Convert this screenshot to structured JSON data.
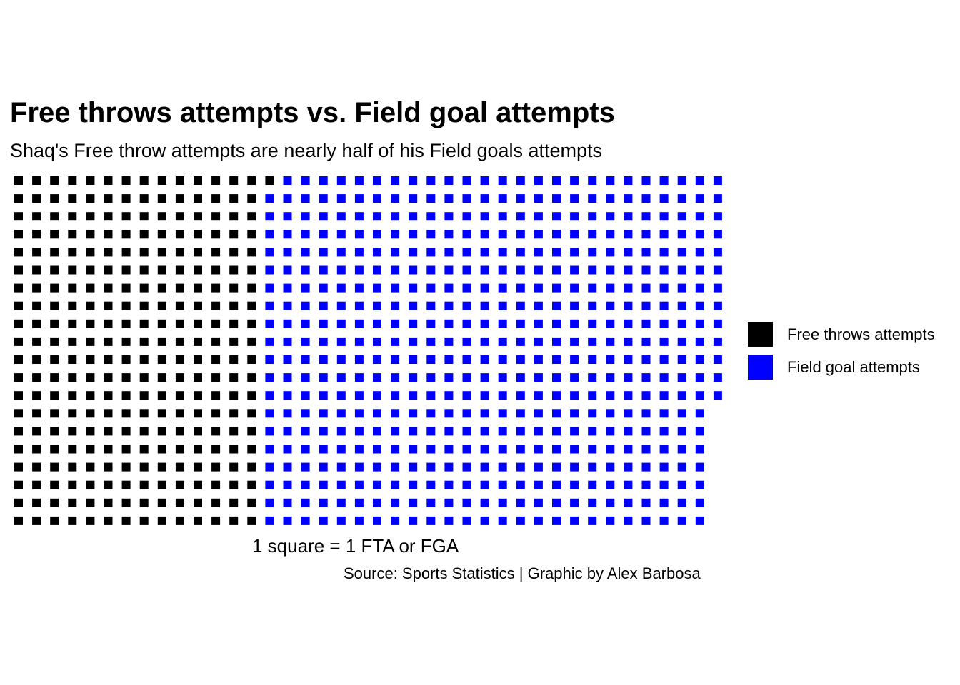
{
  "chart_data": {
    "type": "waffle",
    "title": "Free throws attempts vs. Field goal attempts",
    "subtitle": "Shaq's Free throw attempts are nearly half of his Field goals attempts",
    "xlabel": "1 square = 1 FTA or FGA",
    "caption": "Source: Sports Statistics | Graphic by Alex Barbosa",
    "rows": 20,
    "fill_order": "column-major, top to bottom, left to right",
    "legend_position": "right",
    "series": [
      {
        "name": "Free throws attempts",
        "value": 281,
        "color": "#000000"
      },
      {
        "name": "Field goal attempts",
        "value": 512,
        "color": "#0000ff"
      }
    ]
  }
}
